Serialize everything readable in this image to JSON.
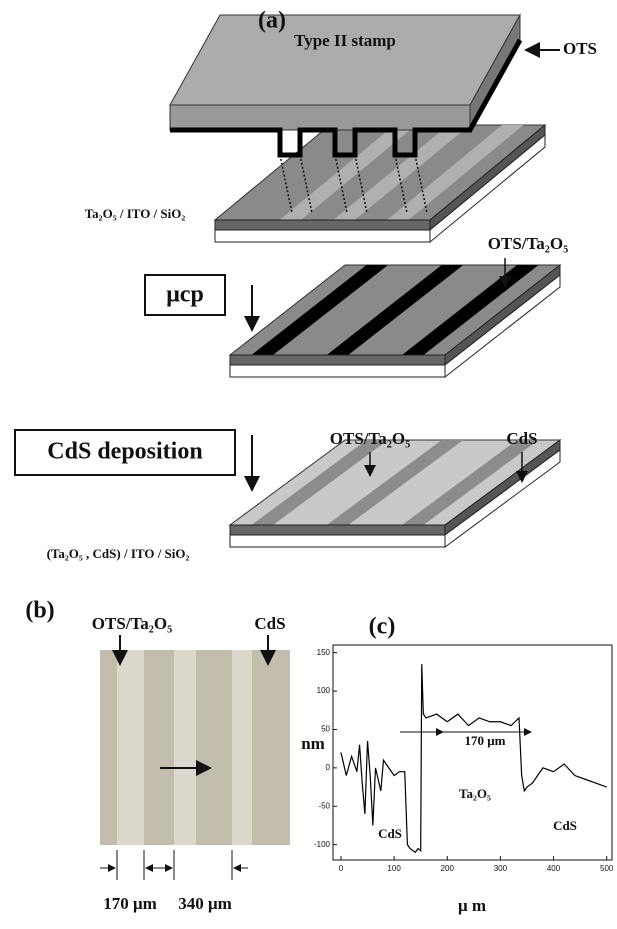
{
  "panel_a": {
    "label": "(a)",
    "stamp": "Type II stamp",
    "ots": "OTS",
    "substrate": "Ta₂O₅ / ITO / SiO₂",
    "step1": "μcp",
    "step1_label": "OTS/Ta₂O₅",
    "step2": "CdS deposition",
    "step2_labels": [
      "OTS/Ta₂O₅",
      "CdS"
    ],
    "result": "(Ta₂O₅ , CdS) / ITO / SiO₂"
  },
  "panel_b": {
    "label": "(b)",
    "labels": [
      "OTS/Ta₂O₅",
      "CdS"
    ],
    "widths": [
      "170 μm",
      "340 μm"
    ]
  },
  "chart_data": {
    "type": "line",
    "label": "(c)",
    "y_label": "nm",
    "x_label": "μ m",
    "annotations": [
      "170 μm",
      "Ta₂O₅",
      "CdS",
      "CdS"
    ],
    "x": [
      0,
      10,
      20,
      25,
      30,
      35,
      40,
      45,
      50,
      55,
      60,
      65,
      70,
      75,
      80,
      90,
      100,
      110,
      120,
      125,
      130,
      140,
      145,
      150,
      152,
      155,
      160,
      180,
      200,
      220,
      240,
      260,
      280,
      300,
      320,
      335,
      340,
      345,
      350,
      360,
      380,
      400,
      420,
      440,
      460,
      480,
      500
    ],
    "series": [
      {
        "color": "#000000",
        "values": [
          20,
          -10,
          15,
          5,
          -5,
          30,
          -20,
          -60,
          35,
          -10,
          -75,
          0,
          -15,
          -30,
          10,
          0,
          -10,
          -5,
          -5,
          -100,
          -105,
          -110,
          -105,
          -108,
          135,
          70,
          65,
          70,
          60,
          70,
          55,
          65,
          60,
          60,
          55,
          65,
          -10,
          -30,
          -25,
          -20,
          0,
          -5,
          5,
          -10,
          -15,
          -20,
          -25
        ]
      }
    ],
    "xlim": [
      -15,
      510
    ],
    "ylim": [
      -120,
      160
    ],
    "xticks": [
      0,
      100,
      200,
      300,
      400,
      500
    ],
    "yticks": [
      -100,
      -50,
      0,
      50,
      100,
      150
    ]
  }
}
